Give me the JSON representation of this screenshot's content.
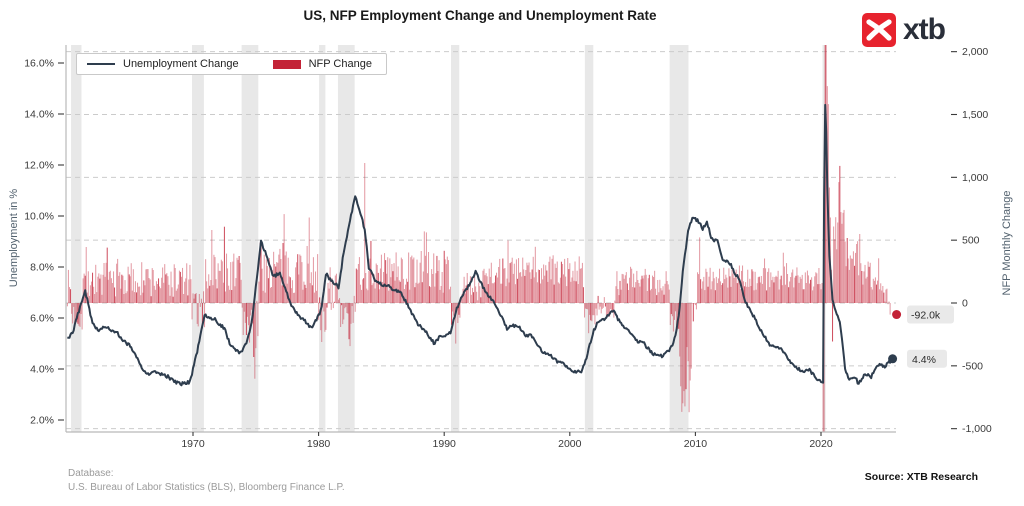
{
  "header": {
    "title": "US, NFP Employment Change and Unemployment Rate",
    "logo_text": "xtb"
  },
  "legend": {
    "unemployment_label": "Unemployment Change",
    "nfp_label": "NFP Change"
  },
  "axes": {
    "left": {
      "title": "Unemployment in %",
      "ticks": [
        "16.0%",
        "14.0%",
        "12.0%",
        "10.0%",
        "8.0%",
        "6.0%",
        "4.0%",
        "2.0%"
      ],
      "tick_values": [
        16,
        14,
        12,
        10,
        8,
        6,
        4,
        2
      ]
    },
    "right": {
      "title": "NFP Monthly Change",
      "ticks": [
        "2,000",
        "1,500",
        "1,000",
        "500",
        "0",
        "-500",
        "-1,000"
      ],
      "tick_values": [
        2000,
        1500,
        1000,
        500,
        0,
        -500,
        -1000
      ]
    },
    "x": {
      "ticks": [
        "1970",
        "1980",
        "1990",
        "2000",
        "2010",
        "2020"
      ],
      "tick_values": [
        1970,
        1980,
        1990,
        2000,
        2010,
        2020
      ]
    }
  },
  "annotations": {
    "nfp_last": {
      "label": "-92.0k",
      "value": -92
    },
    "unemployment_last": {
      "label": "4.4%",
      "value": 4.4
    }
  },
  "footer": {
    "database_label": "Database:",
    "database_sources": "U.S. Bureau of Labor Statistics (BLS), Bloomberg Finance L.P.",
    "source": "Source: XTB Research"
  },
  "colors": {
    "line": "#2e3d4e",
    "bar": "#c32337",
    "logo_red": "#e7232e",
    "recession_band": "#d9d9d9",
    "gridline": "#cbcbcb",
    "spine": "#b9b9b9",
    "tick_text": "#3a3a3a",
    "annotation_bg": "#e9e9e9",
    "annotation_text": "#2b2b2b"
  },
  "chart_data": {
    "type": "combo_bar_line",
    "title": "US, NFP Employment Change and Unemployment Rate",
    "x_range": [
      1959.8,
      2026.0
    ],
    "y_left_label": "Unemployment in %",
    "y_left_range": [
      1.5,
      16.7
    ],
    "y_right_label": "NFP Monthly Change",
    "y_right_range": [
      -1030,
      2050
    ],
    "grid": "horizontal_dashed_at_right_ticks",
    "legend_position": "top-left",
    "noise_seed": 7,
    "recessions": [
      [
        1960.29,
        1961.12
      ],
      [
        1969.92,
        1970.87
      ],
      [
        1973.87,
        1975.2
      ],
      [
        1980.04,
        1980.54
      ],
      [
        1981.54,
        1982.87
      ],
      [
        1990.54,
        1991.2
      ],
      [
        2001.2,
        2001.87
      ],
      [
        2007.95,
        2009.45
      ],
      [
        2020.12,
        2020.37
      ]
    ],
    "unemployment": {
      "name": "Unemployment Change",
      "unit": "%",
      "start": 1960.0,
      "end": 2025.75,
      "last_value": 4.4,
      "keypoints": [
        [
          1960.0,
          5.2
        ],
        [
          1960.4,
          5.4
        ],
        [
          1961.4,
          7.1
        ],
        [
          1962.0,
          5.8
        ],
        [
          1962.5,
          5.5
        ],
        [
          1963.0,
          5.7
        ],
        [
          1963.6,
          5.5
        ],
        [
          1964.0,
          5.4
        ],
        [
          1964.5,
          5.1
        ],
        [
          1965.0,
          4.9
        ],
        [
          1965.5,
          4.5
        ],
        [
          1966.0,
          4.0
        ],
        [
          1966.5,
          3.8
        ],
        [
          1967.0,
          3.9
        ],
        [
          1967.5,
          3.8
        ],
        [
          1968.0,
          3.7
        ],
        [
          1968.5,
          3.5
        ],
        [
          1969.0,
          3.4
        ],
        [
          1969.75,
          3.5
        ],
        [
          1970.3,
          4.6
        ],
        [
          1970.92,
          6.1
        ],
        [
          1971.3,
          6.0
        ],
        [
          1971.7,
          6.0
        ],
        [
          1972.0,
          5.8
        ],
        [
          1972.5,
          5.6
        ],
        [
          1973.0,
          4.9
        ],
        [
          1973.8,
          4.6
        ],
        [
          1974.3,
          5.1
        ],
        [
          1974.7,
          5.9
        ],
        [
          1975.4,
          9.0
        ],
        [
          1975.9,
          8.4
        ],
        [
          1976.4,
          7.6
        ],
        [
          1976.9,
          7.8
        ],
        [
          1977.4,
          7.1
        ],
        [
          1977.9,
          6.4
        ],
        [
          1978.4,
          6.1
        ],
        [
          1978.9,
          5.9
        ],
        [
          1979.4,
          5.6
        ],
        [
          1979.9,
          6.0
        ],
        [
          1980.2,
          6.3
        ],
        [
          1980.6,
          7.8
        ],
        [
          1980.9,
          7.5
        ],
        [
          1981.2,
          7.4
        ],
        [
          1981.6,
          7.2
        ],
        [
          1982.0,
          8.6
        ],
        [
          1982.5,
          9.8
        ],
        [
          1982.92,
          10.8
        ],
        [
          1983.3,
          10.2
        ],
        [
          1983.7,
          9.4
        ],
        [
          1984.0,
          8.0
        ],
        [
          1984.5,
          7.5
        ],
        [
          1985.0,
          7.3
        ],
        [
          1985.5,
          7.3
        ],
        [
          1986.0,
          7.1
        ],
        [
          1986.5,
          7.0
        ],
        [
          1987.0,
          6.6
        ],
        [
          1987.5,
          6.1
        ],
        [
          1988.0,
          5.7
        ],
        [
          1988.5,
          5.5
        ],
        [
          1989.2,
          5.0
        ],
        [
          1989.7,
          5.3
        ],
        [
          1990.0,
          5.3
        ],
        [
          1990.5,
          5.4
        ],
        [
          1991.0,
          6.4
        ],
        [
          1991.5,
          6.9
        ],
        [
          1992.0,
          7.3
        ],
        [
          1992.5,
          7.8
        ],
        [
          1993.0,
          7.3
        ],
        [
          1993.5,
          6.9
        ],
        [
          1994.0,
          6.6
        ],
        [
          1994.5,
          6.1
        ],
        [
          1995.0,
          5.6
        ],
        [
          1995.5,
          5.7
        ],
        [
          1996.0,
          5.6
        ],
        [
          1996.5,
          5.3
        ],
        [
          1997.0,
          5.3
        ],
        [
          1997.5,
          4.9
        ],
        [
          1998.0,
          4.6
        ],
        [
          1998.5,
          4.5
        ],
        [
          1999.0,
          4.3
        ],
        [
          1999.5,
          4.2
        ],
        [
          2000.3,
          3.9
        ],
        [
          2000.9,
          3.9
        ],
        [
          2001.3,
          4.4
        ],
        [
          2001.9,
          5.5
        ],
        [
          2002.3,
          5.9
        ],
        [
          2002.9,
          6.0
        ],
        [
          2003.5,
          6.3
        ],
        [
          2003.9,
          5.9
        ],
        [
          2004.4,
          5.6
        ],
        [
          2004.9,
          5.4
        ],
        [
          2005.4,
          5.1
        ],
        [
          2005.9,
          5.0
        ],
        [
          2006.4,
          4.7
        ],
        [
          2006.9,
          4.5
        ],
        [
          2007.3,
          4.5
        ],
        [
          2007.9,
          4.7
        ],
        [
          2008.3,
          5.1
        ],
        [
          2008.7,
          6.1
        ],
        [
          2009.0,
          7.8
        ],
        [
          2009.4,
          9.4
        ],
        [
          2009.8,
          10.0
        ],
        [
          2010.2,
          9.8
        ],
        [
          2010.6,
          9.5
        ],
        [
          2010.9,
          9.8
        ],
        [
          2011.3,
          9.1
        ],
        [
          2011.8,
          9.0
        ],
        [
          2012.2,
          8.2
        ],
        [
          2012.7,
          8.2
        ],
        [
          2013.0,
          7.9
        ],
        [
          2013.5,
          7.5
        ],
        [
          2014.0,
          6.6
        ],
        [
          2014.5,
          6.2
        ],
        [
          2015.0,
          5.7
        ],
        [
          2015.5,
          5.3
        ],
        [
          2016.0,
          4.9
        ],
        [
          2016.5,
          4.9
        ],
        [
          2017.0,
          4.7
        ],
        [
          2017.5,
          4.3
        ],
        [
          2018.0,
          4.1
        ],
        [
          2018.5,
          3.9
        ],
        [
          2019.0,
          4.0
        ],
        [
          2019.5,
          3.7
        ],
        [
          2019.9,
          3.5
        ],
        [
          2020.18,
          3.5
        ],
        [
          2020.29,
          14.8
        ],
        [
          2020.42,
          13.3
        ],
        [
          2020.5,
          11.1
        ],
        [
          2020.67,
          8.4
        ],
        [
          2020.92,
          6.7
        ],
        [
          2021.2,
          6.2
        ],
        [
          2021.5,
          5.9
        ],
        [
          2021.75,
          4.8
        ],
        [
          2021.95,
          3.9
        ],
        [
          2022.3,
          3.6
        ],
        [
          2022.7,
          3.7
        ],
        [
          2023.0,
          3.4
        ],
        [
          2023.3,
          3.7
        ],
        [
          2023.7,
          3.8
        ],
        [
          2024.0,
          3.7
        ],
        [
          2024.3,
          4.0
        ],
        [
          2024.6,
          4.2
        ],
        [
          2024.9,
          4.1
        ],
        [
          2025.1,
          4.1
        ],
        [
          2025.3,
          4.2
        ],
        [
          2025.5,
          4.3
        ],
        [
          2025.75,
          4.4
        ]
      ]
    },
    "nfp": {
      "name": "NFP Change",
      "unit": "thousands",
      "start_year": 1960,
      "start_month": 1,
      "end_year": 2025,
      "end_month": 7,
      "last_value": -92,
      "segments": [
        [
          1960.0,
          1960.3,
          120,
          150
        ],
        [
          1960.3,
          1961.17,
          -100,
          130
        ],
        [
          1961.17,
          1969.9,
          180,
          150
        ],
        [
          1969.9,
          1970.95,
          -60,
          160
        ],
        [
          1970.95,
          1973.9,
          250,
          170
        ],
        [
          1973.9,
          1975.25,
          -120,
          260
        ],
        [
          1975.25,
          1980.0,
          280,
          200
        ],
        [
          1980.0,
          1980.6,
          -150,
          200
        ],
        [
          1980.6,
          1981.55,
          130,
          190
        ],
        [
          1981.55,
          1983.0,
          -130,
          190
        ],
        [
          1983.0,
          1990.55,
          250,
          170
        ],
        [
          1990.55,
          1991.3,
          -110,
          110
        ],
        [
          1991.3,
          1993.0,
          120,
          120
        ],
        [
          1993.0,
          2001.1,
          250,
          130
        ],
        [
          2001.1,
          2002.1,
          -150,
          110
        ],
        [
          2002.1,
          2003.6,
          -30,
          90
        ],
        [
          2003.6,
          2007.95,
          170,
          110
        ],
        [
          2007.95,
          2008.7,
          -130,
          100
        ],
        [
          2008.7,
          2009.7,
          -520,
          200
        ],
        [
          2009.7,
          2010.1,
          -60,
          130
        ],
        [
          2010.1,
          2020.1,
          200,
          100
        ],
        [
          2021.0,
          2022.0,
          550,
          280
        ],
        [
          2022.0,
          2023.0,
          400,
          160
        ],
        [
          2023.0,
          2024.0,
          240,
          110
        ],
        [
          2024.0,
          2025.0,
          150,
          90
        ],
        [
          2025.0,
          2025.7,
          60,
          80
        ]
      ],
      "overrides": {
        "1974-11": -430,
        "1974-12": -602,
        "1975-01": -360,
        "1980-04": -310,
        "1982-07": -343,
        "1983-09": 1114,
        "2009-01": -798,
        "2009-02": -701,
        "2009-03": -823,
        "2009-04": -686,
        "2009-05": -351,
        "2009-06": -463,
        "2010-05": 522,
        "2020-03": -1373,
        "2020-04": -20500,
        "2020-05": 2700,
        "2020-06": 4800,
        "2020-07": 1726,
        "2020-08": 1583,
        "2020-09": 919,
        "2020-10": 680,
        "2020-11": 264,
        "2020-12": -306,
        "2021-06": 962,
        "2021-07": 1091,
        "2025-07": -92
      }
    }
  }
}
